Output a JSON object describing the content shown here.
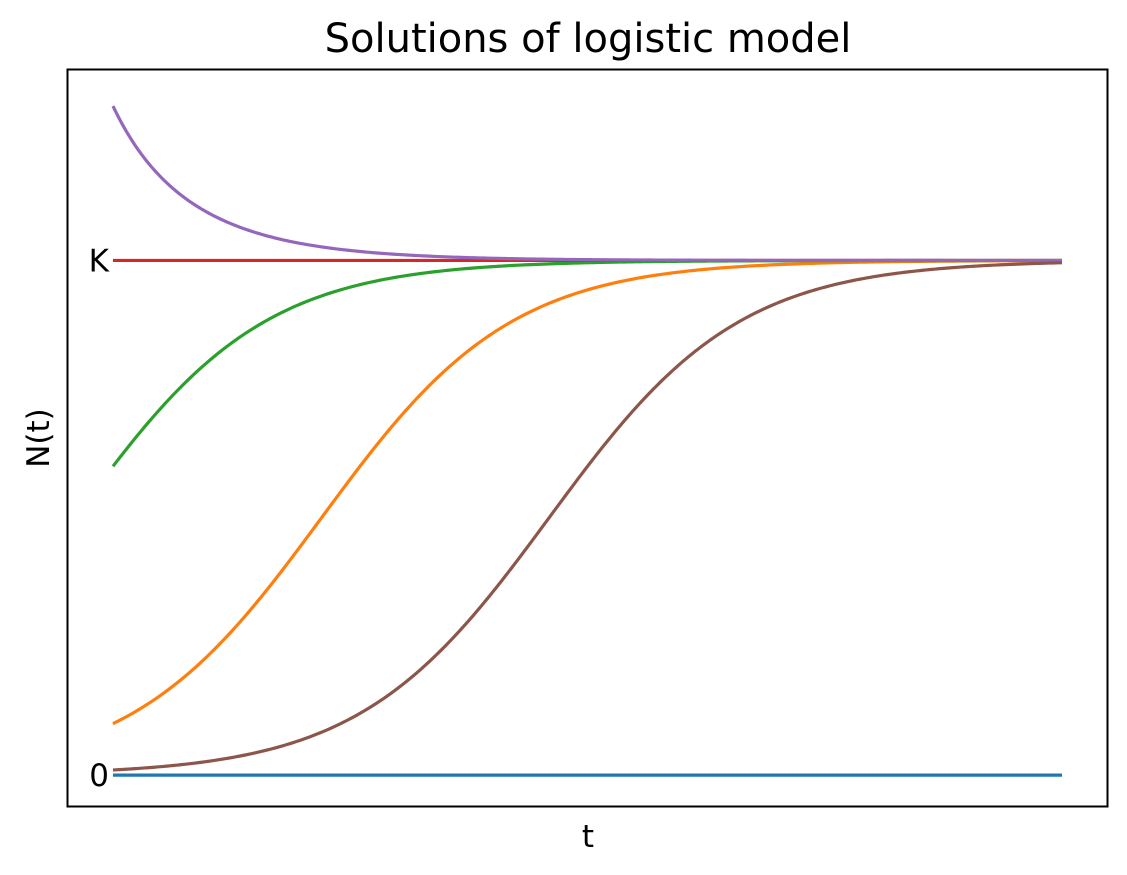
{
  "chart_data": {
    "type": "line",
    "title": "Solutions of logistic model",
    "xlabel": "t",
    "ylabel": "N(t)",
    "y_ticks": [
      {
        "label": "0",
        "value": 0
      },
      {
        "label": "K",
        "value": 1
      }
    ],
    "xlim": [
      0,
      10
    ],
    "ylim": [
      -0.06,
      1.37
    ],
    "grid": false,
    "legend": "none",
    "x_range": [
      0,
      10
    ],
    "series": [
      {
        "type": "constant",
        "N0": 0,
        "r": 1.0,
        "K": 1,
        "color": "#1f77b4"
      },
      {
        "type": "logistic",
        "N0": 0.1,
        "r": 1.0,
        "K": 1,
        "color": "#ff7f0e"
      },
      {
        "type": "logistic",
        "N0": 0.6,
        "r": 1.0,
        "K": 1,
        "color": "#2ca02c"
      },
      {
        "type": "constant",
        "N0": 1,
        "r": 1.0,
        "K": 1,
        "color": "#d62728"
      },
      {
        "type": "logistic",
        "N0": 1.3,
        "r": 1.0,
        "K": 1,
        "color": "#9467bd"
      },
      {
        "type": "logistic",
        "N0": 0.01,
        "r": 1.0,
        "K": 1,
        "color": "#8c564b"
      }
    ]
  }
}
